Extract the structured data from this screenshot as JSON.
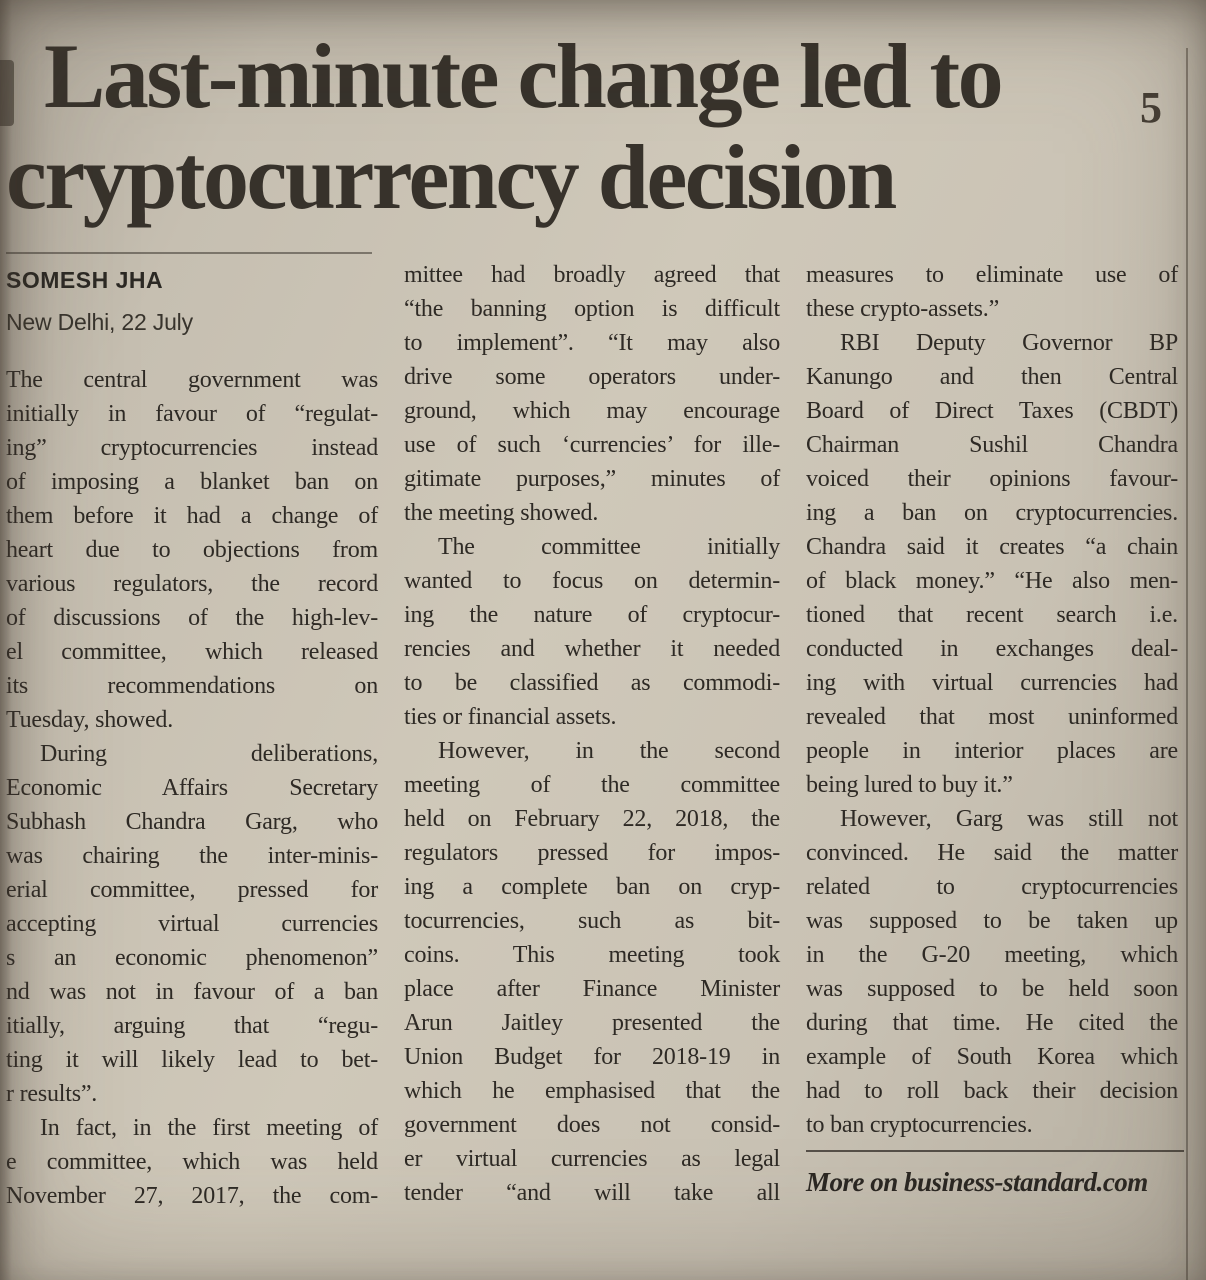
{
  "page": {
    "page_number": "5"
  },
  "colors": {
    "paper": "#c9c2b4",
    "ink": "#2e2a25",
    "headline_ink": "#37322b"
  },
  "article": {
    "headline_lines": [
      "Last-minute change led to",
      "cryptocurrency decision"
    ],
    "byline": {
      "author": "SOMESH JHA",
      "dateline": "New Delhi, 22 July"
    },
    "footer": "More on business-standard.com",
    "columns": [
      {
        "paragraphs": [
          {
            "indent": false,
            "continues": false,
            "lines": [
              "The central government was",
              "initially in favour of “regulat-",
              "ing” cryptocurrencies instead",
              "of imposing a blanket ban on",
              "them before it had a change of",
              "heart due to objections from",
              "various regulators, the record",
              "of discussions of the high-lev-",
              "el committee, which released",
              "its recommendations on",
              "Tuesday, showed."
            ]
          },
          {
            "indent": true,
            "continues": false,
            "lines": [
              "During deliberations,",
              "Economic Affairs Secretary",
              "Subhash Chandra Garg, who",
              "was chairing the inter-minis-",
              "erial committee, pressed for",
              "accepting virtual currencies",
              "s an economic phenomenon”",
              "nd was not in favour of a ban",
              "itially, arguing that “regu-",
              "ting it will likely lead to bet-",
              "r results”."
            ]
          },
          {
            "indent": true,
            "continues": true,
            "lines": [
              "In fact, in the first meeting of",
              "e committee, which was held",
              "November 27, 2017, the com-"
            ]
          }
        ]
      },
      {
        "paragraphs": [
          {
            "indent": false,
            "continues": false,
            "lines": [
              "mittee had broadly agreed that",
              "“the banning option is difficult",
              "to implement”. “It may also",
              "drive some operators under-",
              "ground, which may encourage",
              "use of such ‘currencies’ for ille-",
              "gitimate purposes,” minutes of",
              "the meeting showed."
            ]
          },
          {
            "indent": true,
            "continues": false,
            "lines": [
              "The committee initially",
              "wanted to focus on determin-",
              "ing the nature of cryptocur-",
              "rencies and whether it needed",
              "to be classified as commodi-",
              "ties or financial assets."
            ]
          },
          {
            "indent": true,
            "continues": true,
            "lines": [
              "However, in the second",
              "meeting of the committee",
              "held on February 22, 2018, the",
              "regulators pressed for impos-",
              "ing a complete ban on cryp-",
              "tocurrencies, such as bit-",
              "coins. This meeting took",
              "place after Finance Minister",
              "Arun Jaitley presented the",
              "Union Budget for 2018-19 in",
              "which he emphasised that the",
              "government does not consid-",
              "er virtual currencies as legal",
              "tender “and will take all"
            ]
          }
        ]
      },
      {
        "paragraphs": [
          {
            "indent": false,
            "continues": false,
            "lines": [
              "measures to eliminate use of",
              "these crypto-assets.”"
            ]
          },
          {
            "indent": true,
            "continues": false,
            "lines": [
              "RBI Deputy Governor BP",
              "Kanungo and then Central",
              "Board of Direct Taxes (CBDT)",
              "Chairman Sushil Chandra",
              "voiced their opinions favour-",
              "ing a ban on cryptocurrencies.",
              "Chandra said it creates “a chain",
              "of black money.” “He also men-",
              "tioned that recent search i.e.",
              "conducted in exchanges deal-",
              "ing with virtual currencies had",
              "revealed that most uninformed",
              "people in interior places are",
              "being lured to buy it.”"
            ]
          },
          {
            "indent": true,
            "continues": false,
            "lines": [
              "However, Garg was still not",
              "convinced. He said the matter",
              "related to cryptocurrencies",
              "was supposed to be taken up",
              "in the G-20 meeting, which",
              "was supposed to be held soon",
              "during that time. He cited the",
              "example of South Korea which",
              "had to roll back their decision",
              "to ban cryptocurrencies."
            ]
          }
        ]
      }
    ]
  }
}
